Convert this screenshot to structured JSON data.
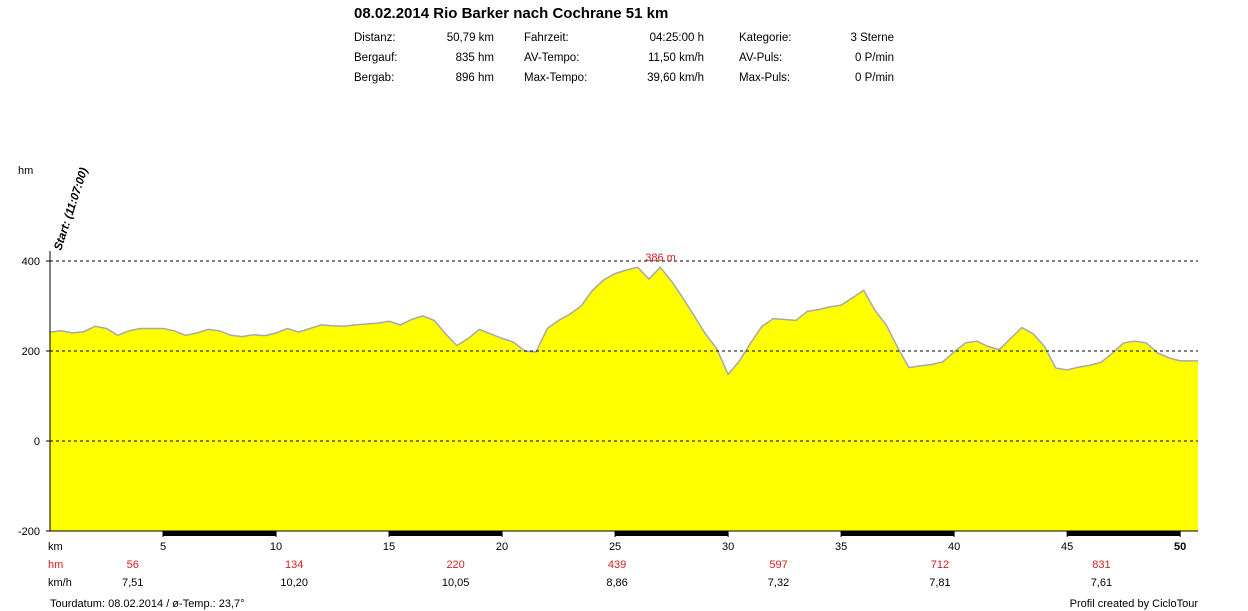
{
  "title": "08.02.2014 Rio Barker nach Cochrane 51 km",
  "stats": [
    {
      "label": "Distanz:",
      "value": "50,79 km"
    },
    {
      "label": "Bergauf:",
      "value": "835 hm"
    },
    {
      "label": "Bergab:",
      "value": "896 hm"
    },
    {
      "label": "Fahrzeit:",
      "value": "04:25:00 h"
    },
    {
      "label": "AV-Tempo:",
      "value": "11,50 km/h"
    },
    {
      "label": "Max-Tempo:",
      "value": "39,60 km/h"
    },
    {
      "label": "Kategorie:",
      "value": "3 Sterne"
    },
    {
      "label": "AV-Puls:",
      "value": "0 P/min"
    },
    {
      "label": "Max-Puls:",
      "value": "0 P/min"
    }
  ],
  "footer": {
    "left": "Tourdatum: 08.02.2014  /  ø-Temp.: 23,7°",
    "right": "Profil created by CicloTour"
  },
  "chart_data": {
    "type": "area",
    "ylabel": "hm",
    "xlabel": "km",
    "ylim": [
      -200,
      400
    ],
    "xlim": [
      0,
      50.79
    ],
    "y_ticks": [
      400,
      200,
      0,
      -200
    ],
    "x_ticks": [
      5,
      10,
      15,
      20,
      25,
      30,
      35,
      40,
      45,
      50
    ],
    "dashed_lines": [
      400,
      200,
      0
    ],
    "start_label": "Start: (11:07:00)",
    "max_label": "386 m",
    "max_at_km": 27.0,
    "colors": {
      "fill": "#ffff00",
      "line": "#a8a8a8",
      "red": "#d42020"
    },
    "cum_hm": {
      "label": "hm",
      "values": [
        56,
        134,
        220,
        439,
        597,
        712,
        831
      ]
    },
    "speed": {
      "label": "km/h",
      "values": [
        "7,51",
        "10,20",
        "10,05",
        "8,86",
        "7,32",
        "7,81",
        "7,61"
      ]
    },
    "bottom_black_segments": [
      [
        5,
        10
      ],
      [
        15,
        20
      ],
      [
        25,
        30
      ],
      [
        35,
        40
      ],
      [
        45,
        50
      ]
    ],
    "x": [
      0,
      0.5,
      1,
      1.5,
      2,
      2.5,
      3,
      3.5,
      4,
      4.5,
      5,
      5.5,
      6,
      6.5,
      7,
      7.5,
      8,
      8.5,
      9,
      9.5,
      10,
      10.5,
      11,
      11.5,
      12,
      12.5,
      13,
      13.5,
      14,
      14.5,
      15,
      15.5,
      16,
      16.5,
      17,
      17.5,
      18,
      18.5,
      19,
      19.5,
      20,
      20.5,
      21,
      21.5,
      22,
      22.5,
      23,
      23.5,
      24,
      24.5,
      25,
      25.5,
      26,
      26.5,
      27,
      27.5,
      28,
      28.5,
      29,
      29.5,
      30,
      30.5,
      31,
      31.5,
      32,
      32.5,
      33,
      33.5,
      34,
      34.5,
      35,
      35.5,
      36,
      36.5,
      37,
      37.5,
      38,
      38.5,
      39,
      39.5,
      40,
      40.5,
      41,
      41.5,
      42,
      42.5,
      43,
      43.5,
      44,
      44.5,
      45,
      45.5,
      46,
      46.5,
      47,
      47.5,
      48,
      48.5,
      49,
      49.5,
      50,
      50.79
    ],
    "y": [
      242,
      245,
      240,
      243,
      255,
      250,
      235,
      245,
      250,
      250,
      250,
      245,
      235,
      240,
      248,
      245,
      235,
      232,
      236,
      234,
      240,
      250,
      242,
      250,
      258,
      256,
      255,
      258,
      260,
      262,
      266,
      258,
      270,
      278,
      268,
      238,
      212,
      228,
      248,
      238,
      228,
      220,
      200,
      198,
      250,
      268,
      282,
      300,
      335,
      358,
      372,
      380,
      386,
      360,
      386,
      355,
      318,
      278,
      238,
      205,
      148,
      178,
      218,
      255,
      272,
      270,
      268,
      288,
      292,
      298,
      302,
      318,
      335,
      290,
      258,
      208,
      163,
      167,
      170,
      176,
      198,
      218,
      222,
      210,
      203,
      228,
      252,
      238,
      210,
      162,
      158,
      164,
      168,
      175,
      195,
      218,
      222,
      218,
      196,
      185,
      178,
      178
    ]
  }
}
